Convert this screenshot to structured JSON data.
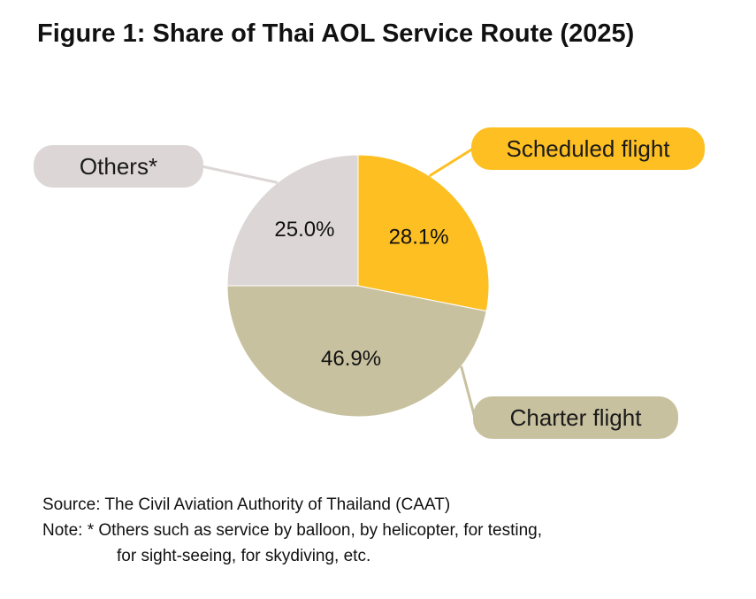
{
  "title": "Figure 1: Share of Thai AOL Service Route (2025)",
  "chart_data": {
    "type": "pie",
    "title": "Figure 1: Share of Thai AOL Service Route (2025)",
    "unit": "%",
    "slices": [
      {
        "name": "Scheduled flight",
        "value": 28.1,
        "label": "28.1%",
        "color": "#FDBF22"
      },
      {
        "name": "Charter flight",
        "value": 46.9,
        "label": "46.9%",
        "color": "#C8C19F"
      },
      {
        "name": "Others*",
        "value": 25.0,
        "label": "25.0%",
        "color": "#DDD6D6"
      }
    ],
    "start_angle_deg": 0,
    "direction": "clockwise",
    "legend": "callout labels"
  },
  "footer": {
    "source": "Source: The Civil Aviation Authority of Thailand (CAAT)",
    "note_line1": "Note: * Others such as service by balloon, by helicopter, for testing,",
    "note_line2": "for sight-seeing, for skydiving, etc."
  }
}
